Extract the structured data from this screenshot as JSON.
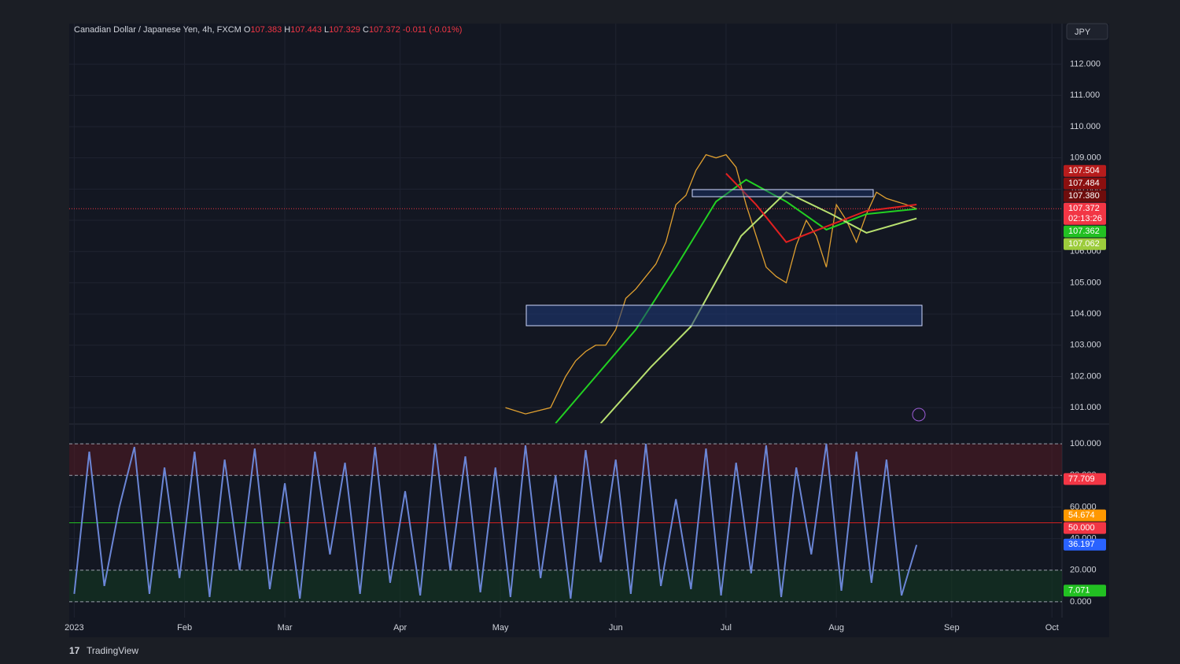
{
  "header": {
    "symbol": "Canadian Dollar / Japanese Yen, 4h, FXCM",
    "o_label": "O",
    "open": "107.383",
    "h_label": "H",
    "high": "107.443",
    "l_label": "L",
    "low": "107.329",
    "c_label": "C",
    "close": "107.372",
    "change": "-0.011 (-0.01%)"
  },
  "currency": "JPY",
  "brand": "TradingView",
  "chart_data": [
    {
      "type": "line",
      "xlim": [
        -1,
        197
      ],
      "ylim": [
        100.5,
        113.3
      ],
      "xticks": [
        {
          "value": 0,
          "label": "2023"
        },
        {
          "value": 22,
          "label": "Feb"
        },
        {
          "value": 42,
          "label": "Mar"
        },
        {
          "value": 65,
          "label": "Apr"
        },
        {
          "value": 85,
          "label": "May"
        },
        {
          "value": 108,
          "label": "Jun"
        },
        {
          "value": 130,
          "label": "Jul"
        },
        {
          "value": 152,
          "label": "Aug"
        },
        {
          "value": 175,
          "label": "Sep"
        },
        {
          "value": 195,
          "label": "Oct"
        }
      ],
      "yticks": [
        {
          "value": 101,
          "label": "101.000"
        },
        {
          "value": 102,
          "label": "102.000"
        },
        {
          "value": 103,
          "label": "103.000"
        },
        {
          "value": 104,
          "label": "104.000"
        },
        {
          "value": 105,
          "label": "105.000"
        },
        {
          "value": 106,
          "label": "106.000"
        },
        {
          "value": 107,
          "label": "107.000"
        },
        {
          "value": 108,
          "label": "108.000"
        },
        {
          "value": 109,
          "label": "109.000"
        },
        {
          "value": 110,
          "label": "110.000"
        },
        {
          "value": 111,
          "label": "111.000"
        },
        {
          "value": 112,
          "label": "112.000"
        }
      ],
      "series": [
        {
          "color": "#e0a030",
          "x": [
            86,
            90,
            95,
            98,
            100,
            102,
            104,
            106,
            108,
            110,
            112,
            114,
            116,
            118,
            120,
            122,
            124,
            126,
            128,
            130,
            132,
            134,
            136,
            138,
            140,
            142,
            144,
            146,
            148,
            150,
            152,
            154,
            156,
            158,
            160,
            162,
            164,
            166,
            168
          ],
          "values": [
            101.0,
            100.8,
            101.0,
            102.0,
            102.5,
            102.8,
            103.0,
            103.0,
            103.5,
            104.5,
            104.8,
            105.2,
            105.6,
            106.3,
            107.5,
            107.8,
            108.6,
            109.1,
            109.0,
            109.1,
            108.7,
            107.5,
            106.5,
            105.5,
            105.2,
            105.0,
            106.2,
            107.0,
            106.5,
            105.5,
            107.5,
            107.0,
            106.3,
            107.2,
            107.9,
            107.7,
            107.6,
            107.5,
            107.372
          ]
        },
        {
          "color": "#22d022",
          "x": [
            96,
            104,
            112,
            120,
            128,
            134,
            142,
            150,
            158,
            168
          ],
          "values": [
            100.5,
            102.0,
            103.5,
            105.5,
            107.6,
            108.3,
            107.6,
            106.7,
            107.2,
            107.362
          ]
        },
        {
          "color": "#b8e070",
          "x": [
            105,
            115,
            123,
            133,
            142,
            151,
            158,
            168
          ],
          "values": [
            100.5,
            102.3,
            103.6,
            106.5,
            107.9,
            107.2,
            106.6,
            107.062
          ]
        },
        {
          "color": "#e02020",
          "x": [
            130,
            136,
            142,
            150,
            158,
            168
          ],
          "values": [
            108.5,
            107.5,
            106.3,
            106.8,
            107.3,
            107.504
          ]
        }
      ],
      "current_price": 107.372,
      "price_labels": [
        {
          "value": 107.504,
          "label": "107.504",
          "color": "#b71c1c"
        },
        {
          "value": 107.484,
          "label": "107.484",
          "color": "#8b0f0f"
        },
        {
          "value": 107.38,
          "label": "107.380",
          "color": "#6e0d0d"
        },
        {
          "value": 107.372,
          "label": "107.372",
          "color": "#f23645",
          "countdown": "02:13:26"
        },
        {
          "value": 107.362,
          "label": "107.362",
          "color": "#22c022"
        },
        {
          "value": 107.062,
          "label": "107.062",
          "color": "#9ccc3c"
        }
      ]
    },
    {
      "type": "line",
      "ylim": [
        -10,
        112
      ],
      "yticks": [
        {
          "value": 0,
          "label": "0.000"
        },
        {
          "value": 20,
          "label": "20.000"
        },
        {
          "value": 40,
          "label": "40.000"
        },
        {
          "value": 60,
          "label": "60.000"
        },
        {
          "value": 80,
          "label": "80.000"
        },
        {
          "value": 100,
          "label": "100.000"
        }
      ],
      "levels": [
        100,
        80,
        20,
        0
      ],
      "midline": 50,
      "series": [
        {
          "color": "#6b86d6",
          "x": [
            0,
            3,
            6,
            9,
            12,
            15,
            18,
            21,
            24,
            27,
            30,
            33,
            36,
            39,
            42,
            45,
            48,
            51,
            54,
            57,
            60,
            63,
            66,
            69,
            72,
            75,
            78,
            81,
            84,
            87,
            90,
            93,
            96,
            99,
            102,
            105,
            108,
            111,
            114,
            117,
            120,
            123,
            126,
            129,
            132,
            135,
            138,
            141,
            144,
            147,
            150,
            153,
            156,
            159,
            162,
            165,
            168
          ],
          "values": [
            5,
            95,
            10,
            60,
            98,
            5,
            85,
            15,
            95,
            3,
            90,
            20,
            97,
            8,
            75,
            2,
            95,
            30,
            88,
            5,
            98,
            12,
            70,
            4,
            100,
            20,
            92,
            6,
            85,
            3,
            99,
            15,
            80,
            2,
            96,
            25,
            90,
            5,
            100,
            10,
            65,
            8,
            97,
            4,
            88,
            18,
            99,
            3,
            85,
            30,
            100,
            7,
            95,
            12,
            90,
            4,
            36
          ]
        }
      ],
      "value_labels": [
        {
          "value": 77.709,
          "label": "77.709",
          "color": "#f23645"
        },
        {
          "value": 54.674,
          "label": "54.674",
          "color": "#ff9800"
        },
        {
          "value": 50,
          "label": "50.000",
          "color": "#f23645"
        },
        {
          "value": 36.197,
          "label": "36.197",
          "color": "#2962ff"
        },
        {
          "value": 7.071,
          "label": "7.071",
          "color": "#22c022"
        }
      ]
    }
  ]
}
